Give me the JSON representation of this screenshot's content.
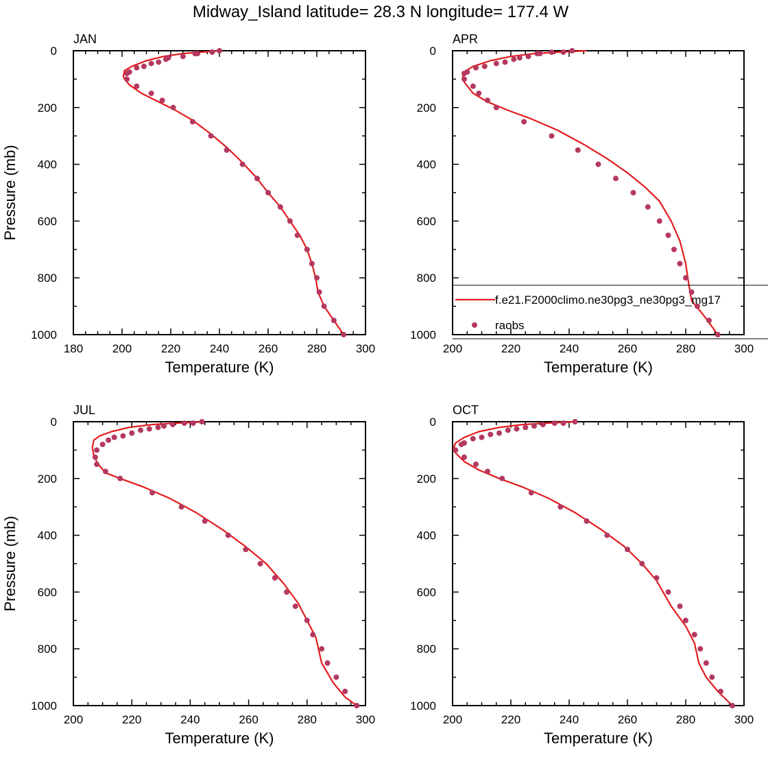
{
  "figure": {
    "title": "Midway_Island  latitude= 28.3 N longitude= 177.4 W"
  },
  "legend": {
    "model_label": "f.e21.F2000climo.ne30pg3_ne30pg3_mg17",
    "obs_label": "raobs"
  },
  "colors": {
    "model": "#e31a1c",
    "obs": "#b5395f",
    "axis": "#000000"
  },
  "chart_data": [
    {
      "type": "line",
      "panel": "JAN",
      "title": "JAN",
      "xlabel": "Temperature (K)",
      "ylabel": "Pressure (mb)",
      "xlim": [
        180,
        300
      ],
      "ylim": [
        1000,
        0
      ],
      "xticks": [
        180,
        200,
        220,
        240,
        260,
        280,
        300
      ],
      "yticks": [
        0,
        200,
        400,
        600,
        800,
        1000
      ],
      "legend": false,
      "series": [
        {
          "name": "f.e21.F2000climo.ne30pg3_ne30pg3_mg17",
          "type": "line",
          "points": [
            [
              240,
              0
            ],
            [
              232,
              5
            ],
            [
              225,
              10
            ],
            [
              217,
              20
            ],
            [
              210,
              35
            ],
            [
              204,
              55
            ],
            [
              201,
              70
            ],
            [
              200.5,
              90
            ],
            [
              201,
              100
            ],
            [
              203,
              120
            ],
            [
              208,
              150
            ],
            [
              215,
              180
            ],
            [
              222,
              210
            ],
            [
              229,
              245
            ],
            [
              236,
              290
            ],
            [
              243,
              340
            ],
            [
              249,
              390
            ],
            [
              255,
              445
            ],
            [
              260,
              500
            ],
            [
              265,
              550
            ],
            [
              269,
              600
            ],
            [
              273,
              650
            ],
            [
              276,
              700
            ],
            [
              278,
              750
            ],
            [
              279.5,
              800
            ],
            [
              280.5,
              850
            ],
            [
              283,
              900
            ],
            [
              287,
              950
            ],
            [
              291,
              1000
            ]
          ]
        },
        {
          "name": "raobs",
          "type": "scatter",
          "points": [
            [
              240,
              0
            ],
            [
              237,
              5
            ],
            [
              231,
              10
            ],
            [
              230,
              10
            ],
            [
              225,
              20
            ],
            [
              219,
              25
            ],
            [
              218,
              30
            ],
            [
              215,
              40
            ],
            [
              212,
              45
            ],
            [
              209,
              55
            ],
            [
              206,
              60
            ],
            [
              203,
              75
            ],
            [
              202,
              80
            ],
            [
              202,
              100
            ],
            [
              206,
              125
            ],
            [
              212,
              150
            ],
            [
              216.5,
              175
            ],
            [
              221,
              200
            ],
            [
              229,
              250
            ],
            [
              236.5,
              300
            ],
            [
              243,
              350
            ],
            [
              249.5,
              400
            ],
            [
              255.5,
              450
            ],
            [
              260,
              500
            ],
            [
              265,
              550
            ],
            [
              269,
              600
            ],
            [
              272,
              650
            ],
            [
              276,
              700
            ],
            [
              278,
              750
            ],
            [
              280,
              800
            ],
            [
              281,
              850
            ],
            [
              283,
              900
            ],
            [
              287,
              950
            ],
            [
              291,
              1000
            ]
          ]
        }
      ]
    },
    {
      "type": "line",
      "panel": "APR",
      "title": "APR",
      "xlabel": "Temperature (K)",
      "ylabel": "",
      "xlim": [
        200,
        300
      ],
      "ylim": [
        1000,
        0
      ],
      "xticks": [
        200,
        220,
        240,
        260,
        280,
        300
      ],
      "yticks": [
        0,
        200,
        400,
        600,
        800,
        1000
      ],
      "legend": true,
      "series": [
        {
          "name": "f.e21.F2000climo.ne30pg3_ne30pg3_mg17",
          "type": "line",
          "points": [
            [
              246,
              0
            ],
            [
              236,
              5
            ],
            [
              228,
              10
            ],
            [
              220,
              20
            ],
            [
              213,
              35
            ],
            [
              207,
              55
            ],
            [
              204,
              75
            ],
            [
              203.5,
              90
            ],
            [
              204,
              110
            ],
            [
              207,
              150
            ],
            [
              212,
              180
            ],
            [
              219,
              210
            ],
            [
              227,
              240
            ],
            [
              236,
              280
            ],
            [
              245,
              330
            ],
            [
              253,
              380
            ],
            [
              260,
              430
            ],
            [
              266,
              480
            ],
            [
              271,
              530
            ],
            [
              275,
              600
            ],
            [
              278,
              670
            ],
            [
              280,
              750
            ],
            [
              281,
              820
            ],
            [
              282,
              880
            ],
            [
              286,
              930
            ],
            [
              291,
              1000
            ]
          ]
        },
        {
          "name": "raobs",
          "type": "scatter",
          "points": [
            [
              241,
              0
            ],
            [
              238,
              5
            ],
            [
              234,
              5
            ],
            [
              230,
              10
            ],
            [
              229,
              10
            ],
            [
              226,
              20
            ],
            [
              223,
              25
            ],
            [
              221,
              30
            ],
            [
              218,
              40
            ],
            [
              215,
              45
            ],
            [
              211,
              55
            ],
            [
              208,
              60
            ],
            [
              205,
              75
            ],
            [
              204,
              80
            ],
            [
              204,
              100
            ],
            [
              207,
              125
            ],
            [
              209,
              150
            ],
            [
              212,
              175
            ],
            [
              215,
              200
            ],
            [
              224.5,
              250
            ],
            [
              234,
              300
            ],
            [
              243,
              350
            ],
            [
              250,
              400
            ],
            [
              256,
              450
            ],
            [
              262,
              500
            ],
            [
              267,
              550
            ],
            [
              271,
              600
            ],
            [
              274,
              650
            ],
            [
              276,
              700
            ],
            [
              278,
              750
            ],
            [
              280,
              800
            ],
            [
              282,
              850
            ],
            [
              284,
              900
            ],
            [
              288,
              950
            ],
            [
              291,
              1000
            ]
          ]
        }
      ]
    },
    {
      "type": "line",
      "panel": "JUL",
      "title": "JUL",
      "xlabel": "Temperature (K)",
      "ylabel": "Pressure (mb)",
      "xlim": [
        200,
        300
      ],
      "ylim": [
        1000,
        0
      ],
      "xticks": [
        200,
        220,
        240,
        260,
        280,
        300
      ],
      "yticks": [
        0,
        200,
        400,
        600,
        800,
        1000
      ],
      "legend": false,
      "series": [
        {
          "name": "f.e21.F2000climo.ne30pg3_ne30pg3_mg17",
          "type": "line",
          "points": [
            [
              245,
              0
            ],
            [
              235,
              5
            ],
            [
              227,
              10
            ],
            [
              219,
              20
            ],
            [
              213,
              35
            ],
            [
              209,
              50
            ],
            [
              207,
              65
            ],
            [
              206.5,
              90
            ],
            [
              207,
              120
            ],
            [
              208.5,
              150
            ],
            [
              211,
              180
            ],
            [
              216,
              200
            ],
            [
              224,
              230
            ],
            [
              233,
              270
            ],
            [
              242,
              320
            ],
            [
              251,
              380
            ],
            [
              259,
              440
            ],
            [
              266,
              500
            ],
            [
              272,
              570
            ],
            [
              277,
              640
            ],
            [
              280,
              700
            ],
            [
              283,
              760
            ],
            [
              285,
              850
            ],
            [
              289,
              920
            ],
            [
              293,
              970
            ],
            [
              297,
              1000
            ]
          ]
        },
        {
          "name": "raobs",
          "type": "scatter",
          "points": [
            [
              244,
              0
            ],
            [
              241,
              5
            ],
            [
              238,
              5
            ],
            [
              234,
              10
            ],
            [
              231,
              15
            ],
            [
              229,
              20
            ],
            [
              226,
              25
            ],
            [
              223,
              30
            ],
            [
              220,
              40
            ],
            [
              217,
              50
            ],
            [
              214,
              55
            ],
            [
              212,
              65
            ],
            [
              210,
              80
            ],
            [
              208,
              100
            ],
            [
              207.5,
              125
            ],
            [
              208,
              150
            ],
            [
              211,
              175
            ],
            [
              216,
              200
            ],
            [
              227,
              250
            ],
            [
              237,
              300
            ],
            [
              245,
              350
            ],
            [
              253,
              400
            ],
            [
              259,
              450
            ],
            [
              264,
              500
            ],
            [
              269,
              550
            ],
            [
              273,
              600
            ],
            [
              276,
              650
            ],
            [
              280,
              700
            ],
            [
              282,
              750
            ],
            [
              285,
              800
            ],
            [
              287,
              850
            ],
            [
              290,
              900
            ],
            [
              293,
              950
            ],
            [
              297,
              1000
            ]
          ]
        }
      ]
    },
    {
      "type": "line",
      "panel": "OCT",
      "title": "OCT",
      "xlabel": "Temperature (K)",
      "ylabel": "",
      "xlim": [
        200,
        300
      ],
      "ylim": [
        1000,
        0
      ],
      "xticks": [
        200,
        220,
        240,
        260,
        280,
        300
      ],
      "yticks": [
        0,
        200,
        400,
        600,
        800,
        1000
      ],
      "legend": false,
      "series": [
        {
          "name": "f.e21.F2000climo.ne30pg3_ne30pg3_mg17",
          "type": "line",
          "points": [
            [
              242,
              0
            ],
            [
              232,
              5
            ],
            [
              224,
              10
            ],
            [
              216,
              20
            ],
            [
              209,
              35
            ],
            [
              204,
              55
            ],
            [
              201,
              75
            ],
            [
              200.3,
              95
            ],
            [
              201,
              110
            ],
            [
              204,
              140
            ],
            [
              209,
              170
            ],
            [
              216,
              200
            ],
            [
              224,
              230
            ],
            [
              233,
              270
            ],
            [
              242,
              320
            ],
            [
              251,
              380
            ],
            [
              259,
              440
            ],
            [
              265,
              500
            ],
            [
              270,
              560
            ],
            [
              275,
              650
            ],
            [
              280,
              720
            ],
            [
              283,
              780
            ],
            [
              284.5,
              850
            ],
            [
              287,
              900
            ],
            [
              291,
              950
            ],
            [
              296,
              1000
            ]
          ]
        },
        {
          "name": "raobs",
          "type": "scatter",
          "points": [
            [
              242,
              0
            ],
            [
              238,
              5
            ],
            [
              235,
              5
            ],
            [
              231,
              10
            ],
            [
              228,
              15
            ],
            [
              225,
              20
            ],
            [
              222,
              25
            ],
            [
              219,
              30
            ],
            [
              216,
              40
            ],
            [
              213,
              45
            ],
            [
              210,
              55
            ],
            [
              207,
              60
            ],
            [
              204,
              75
            ],
            [
              203,
              80
            ],
            [
              201,
              100
            ],
            [
              204,
              125
            ],
            [
              208,
              150
            ],
            [
              212,
              175
            ],
            [
              217,
              200
            ],
            [
              227,
              250
            ],
            [
              237,
              300
            ],
            [
              246,
              350
            ],
            [
              253,
              400
            ],
            [
              260,
              450
            ],
            [
              265,
              500
            ],
            [
              270,
              550
            ],
            [
              274,
              600
            ],
            [
              278,
              650
            ],
            [
              280,
              700
            ],
            [
              283,
              750
            ],
            [
              285,
              800
            ],
            [
              287,
              850
            ],
            [
              289,
              900
            ],
            [
              292,
              950
            ],
            [
              296,
              1000
            ]
          ]
        }
      ]
    }
  ]
}
